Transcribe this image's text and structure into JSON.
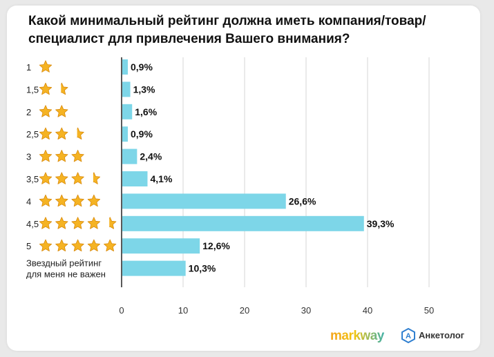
{
  "title": "Какой минимальный рейтинг должна иметь компания/товар/ специалист для привлечения Вашего внимания?",
  "colors": {
    "bar": "#7dd6e8",
    "star": "#f5b323",
    "star_stroke": "#d98a0b",
    "grid": "#d6d6d6",
    "axis": "#222222"
  },
  "chart_data": {
    "type": "bar",
    "orientation": "horizontal",
    "title": "Какой минимальный рейтинг должна иметь компания/товар/ специалист для привлечения Вашего внимания?",
    "categories": [
      "1",
      "1,5",
      "2",
      "2,5",
      "3",
      "3,5",
      "4",
      "4,5",
      "5",
      "Звездный рейтинг для меня не важен"
    ],
    "stars": [
      1,
      1.5,
      2,
      2.5,
      3,
      3.5,
      4,
      4.5,
      5,
      0
    ],
    "values": [
      0.9,
      1.3,
      1.6,
      0.9,
      2.4,
      4.1,
      26.6,
      39.3,
      12.6,
      10.3
    ],
    "value_labels": [
      "0,9%",
      "1,3%",
      "1,6%",
      "0,9%",
      "2,4%",
      "4,1%",
      "26,6%",
      "39,3%",
      "12,6%",
      "10,3%"
    ],
    "xlim": [
      0,
      50
    ],
    "xticks": [
      "0",
      "10",
      "20",
      "30",
      "40",
      "50"
    ],
    "grid": true
  },
  "logos": {
    "markway": "markway",
    "anketolog": "Анкетолог",
    "anketolog_icon_letter": "А"
  }
}
